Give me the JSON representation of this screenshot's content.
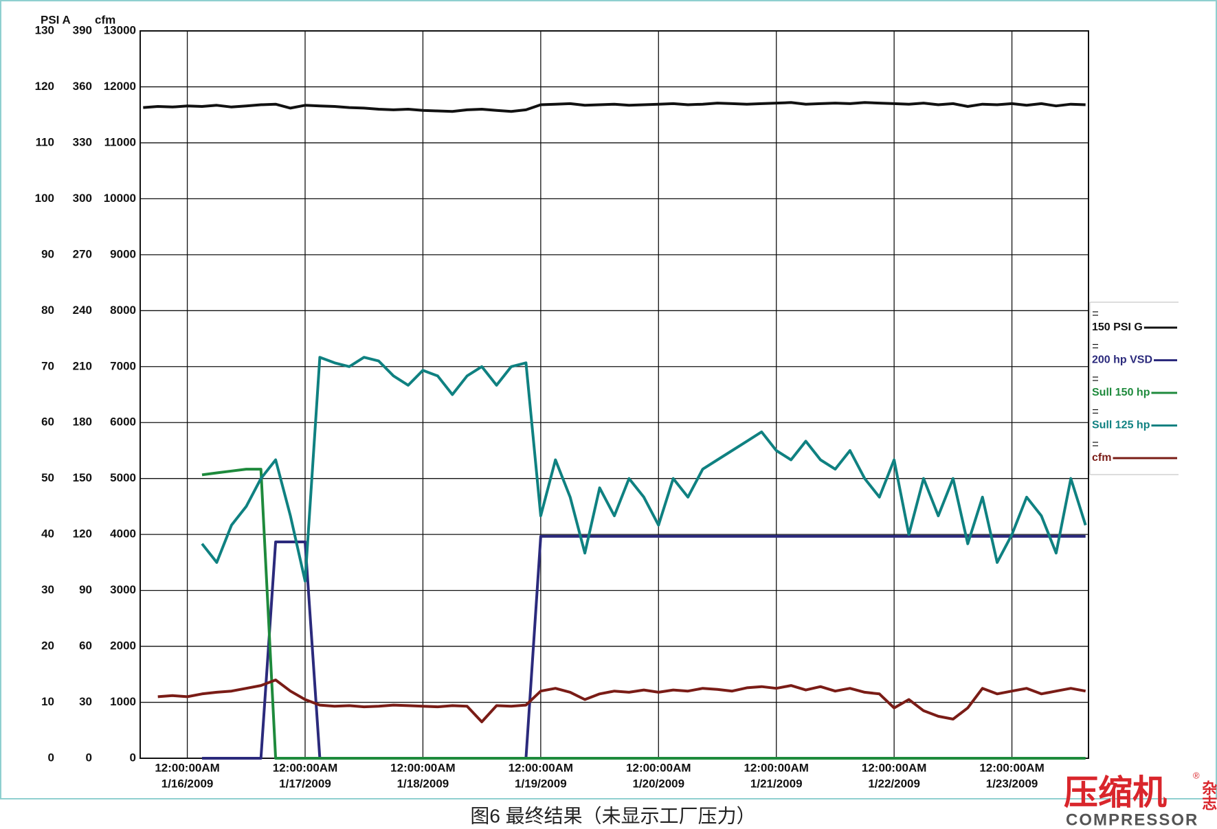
{
  "chart_data": {
    "type": "line",
    "axes": [
      {
        "title": "PSI A",
        "lim": [
          0,
          130
        ],
        "ticks": [
          0,
          10,
          20,
          30,
          40,
          50,
          60,
          70,
          80,
          90,
          100,
          110,
          120,
          130
        ]
      },
      {
        "lim": [
          0,
          390
        ],
        "ticks": [
          0,
          30,
          60,
          90,
          120,
          150,
          180,
          210,
          240,
          270,
          300,
          330,
          360,
          390
        ]
      },
      {
        "title": "cfm",
        "lim": [
          0,
          13000
        ],
        "ticks": [
          0,
          1000,
          2000,
          3000,
          4000,
          5000,
          6000,
          7000,
          8000,
          9000,
          10000,
          11000,
          12000,
          13000
        ]
      }
    ],
    "xlim": [
      "2009-01-15T14:24",
      "2009-01-23T15:36"
    ],
    "xticks": [
      {
        "value": "2009-01-16T00:00",
        "label": [
          "12:00:00AM",
          "1/16/2009"
        ]
      },
      {
        "value": "2009-01-17T00:00",
        "label": [
          "12:00:00AM",
          "1/17/2009"
        ]
      },
      {
        "value": "2009-01-18T00:00",
        "label": [
          "12:00:00AM",
          "1/18/2009"
        ]
      },
      {
        "value": "2009-01-19T00:00",
        "label": [
          "12:00:00AM",
          "1/19/2009"
        ]
      },
      {
        "value": "2009-01-20T00:00",
        "label": [
          "12:00:00AM",
          "1/20/2009"
        ]
      },
      {
        "value": "2009-01-21T00:00",
        "label": [
          "12:00:00AM",
          "1/21/2009"
        ]
      },
      {
        "value": "2009-01-22T00:00",
        "label": [
          "12:00:00AM",
          "1/22/2009"
        ]
      },
      {
        "value": "2009-01-23T00:00",
        "label": [
          "12:00:00AM",
          "1/23/2009"
        ]
      }
    ],
    "grid": true,
    "legend": "right",
    "x": [
      "2009-01-15T15:00",
      "2009-01-15T18:00",
      "2009-01-15T21:00",
      "2009-01-16T00:00",
      "2009-01-16T03:00",
      "2009-01-16T06:00",
      "2009-01-16T09:00",
      "2009-01-16T12:00",
      "2009-01-16T15:00",
      "2009-01-16T18:00",
      "2009-01-16T21:00",
      "2009-01-17T00:00",
      "2009-01-17T03:00",
      "2009-01-17T06:00",
      "2009-01-17T09:00",
      "2009-01-17T12:00",
      "2009-01-17T15:00",
      "2009-01-17T18:00",
      "2009-01-17T21:00",
      "2009-01-18T00:00",
      "2009-01-18T03:00",
      "2009-01-18T06:00",
      "2009-01-18T09:00",
      "2009-01-18T12:00",
      "2009-01-18T15:00",
      "2009-01-18T18:00",
      "2009-01-18T21:00",
      "2009-01-19T00:00",
      "2009-01-19T03:00",
      "2009-01-19T06:00",
      "2009-01-19T09:00",
      "2009-01-19T12:00",
      "2009-01-19T15:00",
      "2009-01-19T18:00",
      "2009-01-19T21:00",
      "2009-01-20T00:00",
      "2009-01-20T03:00",
      "2009-01-20T06:00",
      "2009-01-20T09:00",
      "2009-01-20T12:00",
      "2009-01-20T15:00",
      "2009-01-20T18:00",
      "2009-01-20T21:00",
      "2009-01-21T00:00",
      "2009-01-21T03:00",
      "2009-01-21T06:00",
      "2009-01-21T09:00",
      "2009-01-21T12:00",
      "2009-01-21T15:00",
      "2009-01-21T18:00",
      "2009-01-21T21:00",
      "2009-01-22T00:00",
      "2009-01-22T03:00",
      "2009-01-22T06:00",
      "2009-01-22T09:00",
      "2009-01-22T12:00",
      "2009-01-22T15:00",
      "2009-01-22T18:00",
      "2009-01-22T21:00",
      "2009-01-23T00:00",
      "2009-01-23T03:00",
      "2009-01-23T06:00",
      "2009-01-23T09:00",
      "2009-01-23T12:00",
      "2009-01-23T15:00"
    ],
    "series": [
      {
        "name": "150 PSI G",
        "color": "#111111",
        "axis": 0,
        "values": [
          116.3,
          116.5,
          116.4,
          116.6,
          116.5,
          116.7,
          116.4,
          116.6,
          116.8,
          116.9,
          116.2,
          116.7,
          116.6,
          116.5,
          116.3,
          116.2,
          116.0,
          115.9,
          116.0,
          115.8,
          115.7,
          115.6,
          115.9,
          116.0,
          115.8,
          115.6,
          115.9,
          116.8,
          116.9,
          117.0,
          116.7,
          116.8,
          116.9,
          116.7,
          116.8,
          116.9,
          117.0,
          116.8,
          116.9,
          117.1,
          117.0,
          116.9,
          117.0,
          117.1,
          117.2,
          116.9,
          117.0,
          117.1,
          117.0,
          117.2,
          117.1,
          117.0,
          116.9,
          117.1,
          116.8,
          117.0,
          116.5,
          116.9,
          116.8,
          117.0,
          116.7,
          117.0,
          116.6,
          116.9,
          116.8
        ]
      },
      {
        "name": "200 hp VSD",
        "color": "#2b2a7c",
        "axis": 1,
        "values": [
          null,
          null,
          null,
          null,
          0,
          0,
          0,
          0,
          0,
          116,
          116,
          116,
          0,
          0,
          0,
          0,
          0,
          0,
          0,
          0,
          0,
          0,
          0,
          0,
          0,
          0,
          0,
          119,
          119,
          119,
          119,
          119,
          119,
          119,
          119,
          119,
          119,
          119,
          119,
          119,
          119,
          119,
          119,
          119,
          119,
          119,
          119,
          119,
          119,
          119,
          119,
          119,
          119,
          119,
          119,
          119,
          119,
          119,
          119,
          119,
          119,
          119,
          119,
          119,
          119
        ]
      },
      {
        "name": "Sull 150 hp",
        "color": "#1e8a3c",
        "axis": 1,
        "values": [
          null,
          null,
          null,
          null,
          152,
          153,
          154,
          155,
          155,
          0,
          0,
          0,
          0,
          0,
          0,
          0,
          0,
          0,
          0,
          0,
          0,
          0,
          0,
          0,
          0,
          0,
          0,
          0,
          0,
          0,
          0,
          0,
          0,
          0,
          0,
          0,
          0,
          0,
          0,
          0,
          0,
          0,
          0,
          0,
          0,
          0,
          0,
          0,
          0,
          0,
          0,
          0,
          0,
          0,
          0,
          0,
          0,
          0,
          0,
          0,
          0,
          0,
          0,
          0,
          0
        ]
      },
      {
        "name": "Sull 125 hp",
        "color": "#0f8181",
        "axis": 1,
        "values": [
          null,
          null,
          null,
          null,
          115,
          105,
          125,
          135,
          150,
          160,
          130,
          95,
          215,
          212,
          210,
          215,
          213,
          205,
          200,
          208,
          205,
          195,
          205,
          210,
          200,
          210,
          212,
          130,
          160,
          140,
          110,
          145,
          130,
          150,
          140,
          125,
          150,
          140,
          155,
          160,
          165,
          170,
          175,
          165,
          160,
          170,
          160,
          155,
          165,
          150,
          140,
          160,
          120,
          150,
          130,
          150,
          115,
          140,
          105,
          120,
          140,
          130,
          110,
          150,
          125
        ]
      },
      {
        "name": "cfm",
        "color": "#7a1c16",
        "axis": 2,
        "values": [
          null,
          1100,
          1120,
          1100,
          1150,
          1180,
          1200,
          1250,
          1300,
          1400,
          1200,
          1050,
          950,
          930,
          940,
          920,
          930,
          950,
          940,
          930,
          920,
          940,
          930,
          650,
          940,
          930,
          950,
          1200,
          1250,
          1180,
          1050,
          1150,
          1200,
          1180,
          1220,
          1180,
          1220,
          1200,
          1250,
          1230,
          1200,
          1260,
          1280,
          1250,
          1300,
          1220,
          1280,
          1200,
          1250,
          1180,
          1150,
          900,
          1050,
          850,
          750,
          700,
          900,
          1250,
          1150,
          1200,
          1250,
          1150,
          1200,
          1250,
          1200
        ]
      }
    ]
  },
  "caption": "图6 最终结果（未显示工厂压力）",
  "logo": {
    "name": "压缩机",
    "side": "杂志",
    "sub": "COMPRESSOR",
    "mark": "®"
  }
}
